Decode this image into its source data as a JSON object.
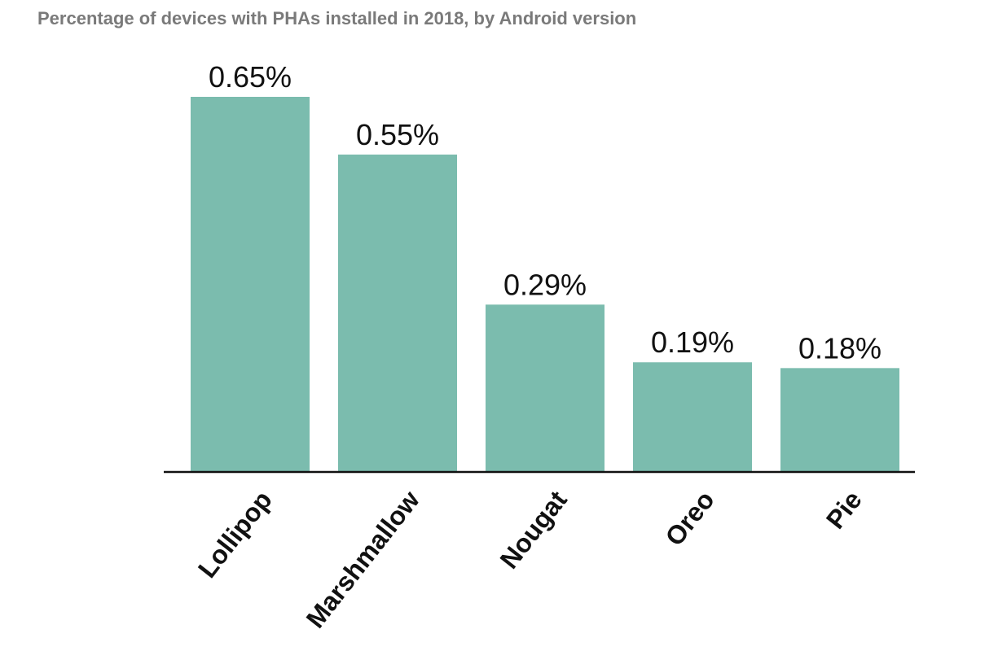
{
  "chart_data": {
    "type": "bar",
    "title": "Percentage of devices with PHAs installed in 2018, by Android version",
    "categories": [
      "Lollipop",
      "Marshmallow",
      "Nougat",
      "Oreo",
      "Pie"
    ],
    "values": [
      0.65,
      0.55,
      0.29,
      0.19,
      0.18
    ],
    "data_labels": [
      "0.65%",
      "0.55%",
      "0.29%",
      "0.19%",
      "0.18%"
    ],
    "unit": "%",
    "ylim": [
      0,
      0.65
    ],
    "grid": false,
    "legend": "none",
    "bar_color": "#7bbcae",
    "axis_color": "#111111",
    "title_color": "#7a7a7a"
  }
}
